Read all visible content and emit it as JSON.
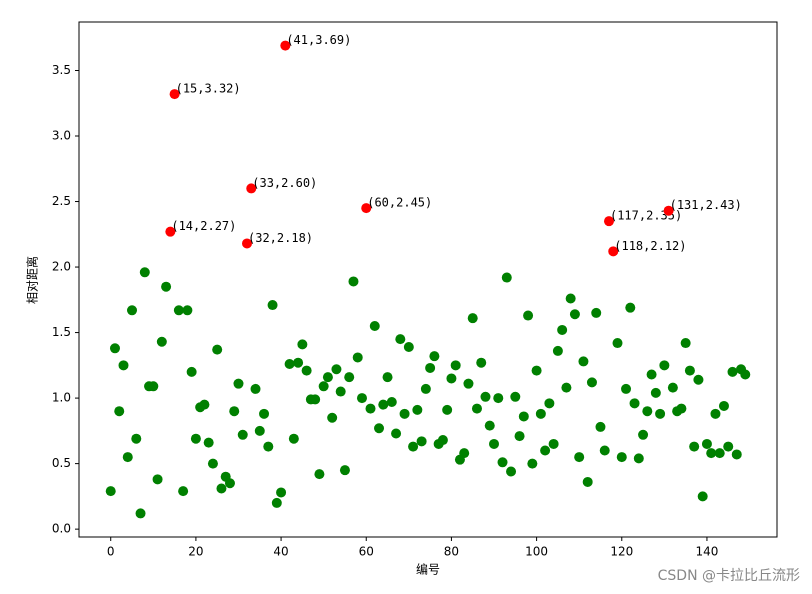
{
  "chart_data": {
    "type": "scatter",
    "xlabel": "编号",
    "ylabel": "相对距离",
    "watermark": "CSDN @卡拉比丘流形",
    "xlim": [
      -7.45,
      156.45
    ],
    "ylim": [
      -0.06,
      3.87
    ],
    "xticks": [
      0,
      20,
      40,
      60,
      80,
      100,
      120,
      140
    ],
    "yticks": [
      {
        "value": 0,
        "label": "0.0"
      },
      0.5,
      {
        "value": 1,
        "label": "1.0"
      },
      1.5,
      {
        "value": 2,
        "label": "2.0"
      },
      2.5,
      {
        "value": 3,
        "label": "3.0"
      },
      3.5
    ],
    "series": [
      {
        "color": "#008000",
        "x": [
          0,
          1,
          2,
          3,
          4,
          5,
          6,
          7,
          8,
          9,
          10,
          11,
          12,
          13,
          16,
          17,
          18,
          19,
          20,
          21,
          22,
          23,
          24,
          25,
          26,
          27,
          28,
          29,
          30,
          31,
          34,
          35,
          36,
          37,
          38,
          39,
          40,
          42,
          43,
          44,
          45,
          46,
          47,
          48,
          49,
          50,
          51,
          52,
          53,
          54,
          55,
          56,
          57,
          58,
          59,
          61,
          62,
          63,
          64,
          65,
          66,
          67,
          68,
          69,
          70,
          71,
          72,
          73,
          74,
          75,
          76,
          77,
          78,
          79,
          80,
          81,
          82,
          83,
          84,
          85,
          86,
          87,
          88,
          89,
          90,
          91,
          92,
          93,
          94,
          95,
          96,
          97,
          98,
          99,
          100,
          101,
          102,
          103,
          104,
          105,
          106,
          107,
          108,
          109,
          110,
          111,
          112,
          113,
          114,
          115,
          116,
          119,
          120,
          121,
          122,
          123,
          124,
          125,
          126,
          127,
          128,
          129,
          130,
          132,
          133,
          134,
          135,
          136,
          137,
          138,
          139,
          140,
          141,
          142,
          143,
          144,
          145,
          146,
          147,
          148,
          149
        ],
        "values": [
          0.29,
          1.38,
          0.9,
          1.25,
          0.55,
          1.67,
          0.69,
          0.12,
          1.96,
          1.09,
          1.09,
          0.38,
          1.43,
          1.85,
          1.67,
          0.29,
          1.67,
          1.2,
          0.69,
          0.93,
          0.95,
          0.66,
          0.5,
          1.37,
          0.31,
          0.4,
          0.35,
          0.9,
          1.11,
          0.72,
          1.07,
          0.75,
          0.88,
          0.63,
          1.71,
          0.2,
          0.28,
          1.26,
          0.69,
          1.27,
          1.41,
          1.21,
          0.99,
          0.99,
          0.42,
          1.09,
          1.16,
          0.85,
          1.22,
          1.05,
          0.45,
          1.16,
          1.89,
          1.31,
          1.0,
          0.92,
          1.55,
          0.77,
          0.95,
          1.16,
          0.97,
          0.73,
          1.45,
          0.88,
          1.39,
          0.63,
          0.91,
          0.67,
          1.07,
          1.23,
          1.32,
          0.65,
          0.68,
          0.91,
          1.15,
          1.25,
          0.53,
          0.58,
          1.11,
          1.61,
          0.92,
          1.27,
          1.01,
          0.79,
          0.65,
          1.0,
          0.51,
          1.92,
          0.44,
          1.01,
          0.71,
          0.86,
          1.63,
          0.5,
          1.21,
          0.88,
          0.6,
          0.96,
          0.65,
          1.36,
          1.52,
          1.08,
          1.76,
          1.64,
          0.55,
          1.28,
          0.36,
          1.12,
          1.65,
          0.78,
          0.6,
          1.42,
          0.55,
          1.07,
          1.69,
          0.96,
          0.54,
          0.72,
          0.9,
          1.18,
          1.04,
          0.88,
          1.25,
          1.08,
          0.9,
          0.92,
          1.42,
          1.21,
          0.63,
          1.14,
          0.25,
          0.65,
          0.58,
          0.88,
          0.58,
          0.94,
          0.63,
          1.2,
          0.57,
          1.22,
          1.18
        ]
      },
      {
        "color": "#ff0000",
        "x": [
          14,
          15,
          32,
          33,
          41,
          60,
          117,
          118,
          131
        ],
        "values": [
          2.27,
          3.32,
          2.18,
          2.6,
          3.69,
          2.45,
          2.35,
          2.12,
          2.43
        ],
        "value_labels": [
          "(14,2.27)",
          "(15,3.32)",
          "(32,2.18)",
          "(33,2.60)",
          "(41,3.69)",
          "(60,2.45)",
          "(117,2.35)",
          "(118,2.12)",
          "(131,2.43)"
        ]
      }
    ]
  }
}
